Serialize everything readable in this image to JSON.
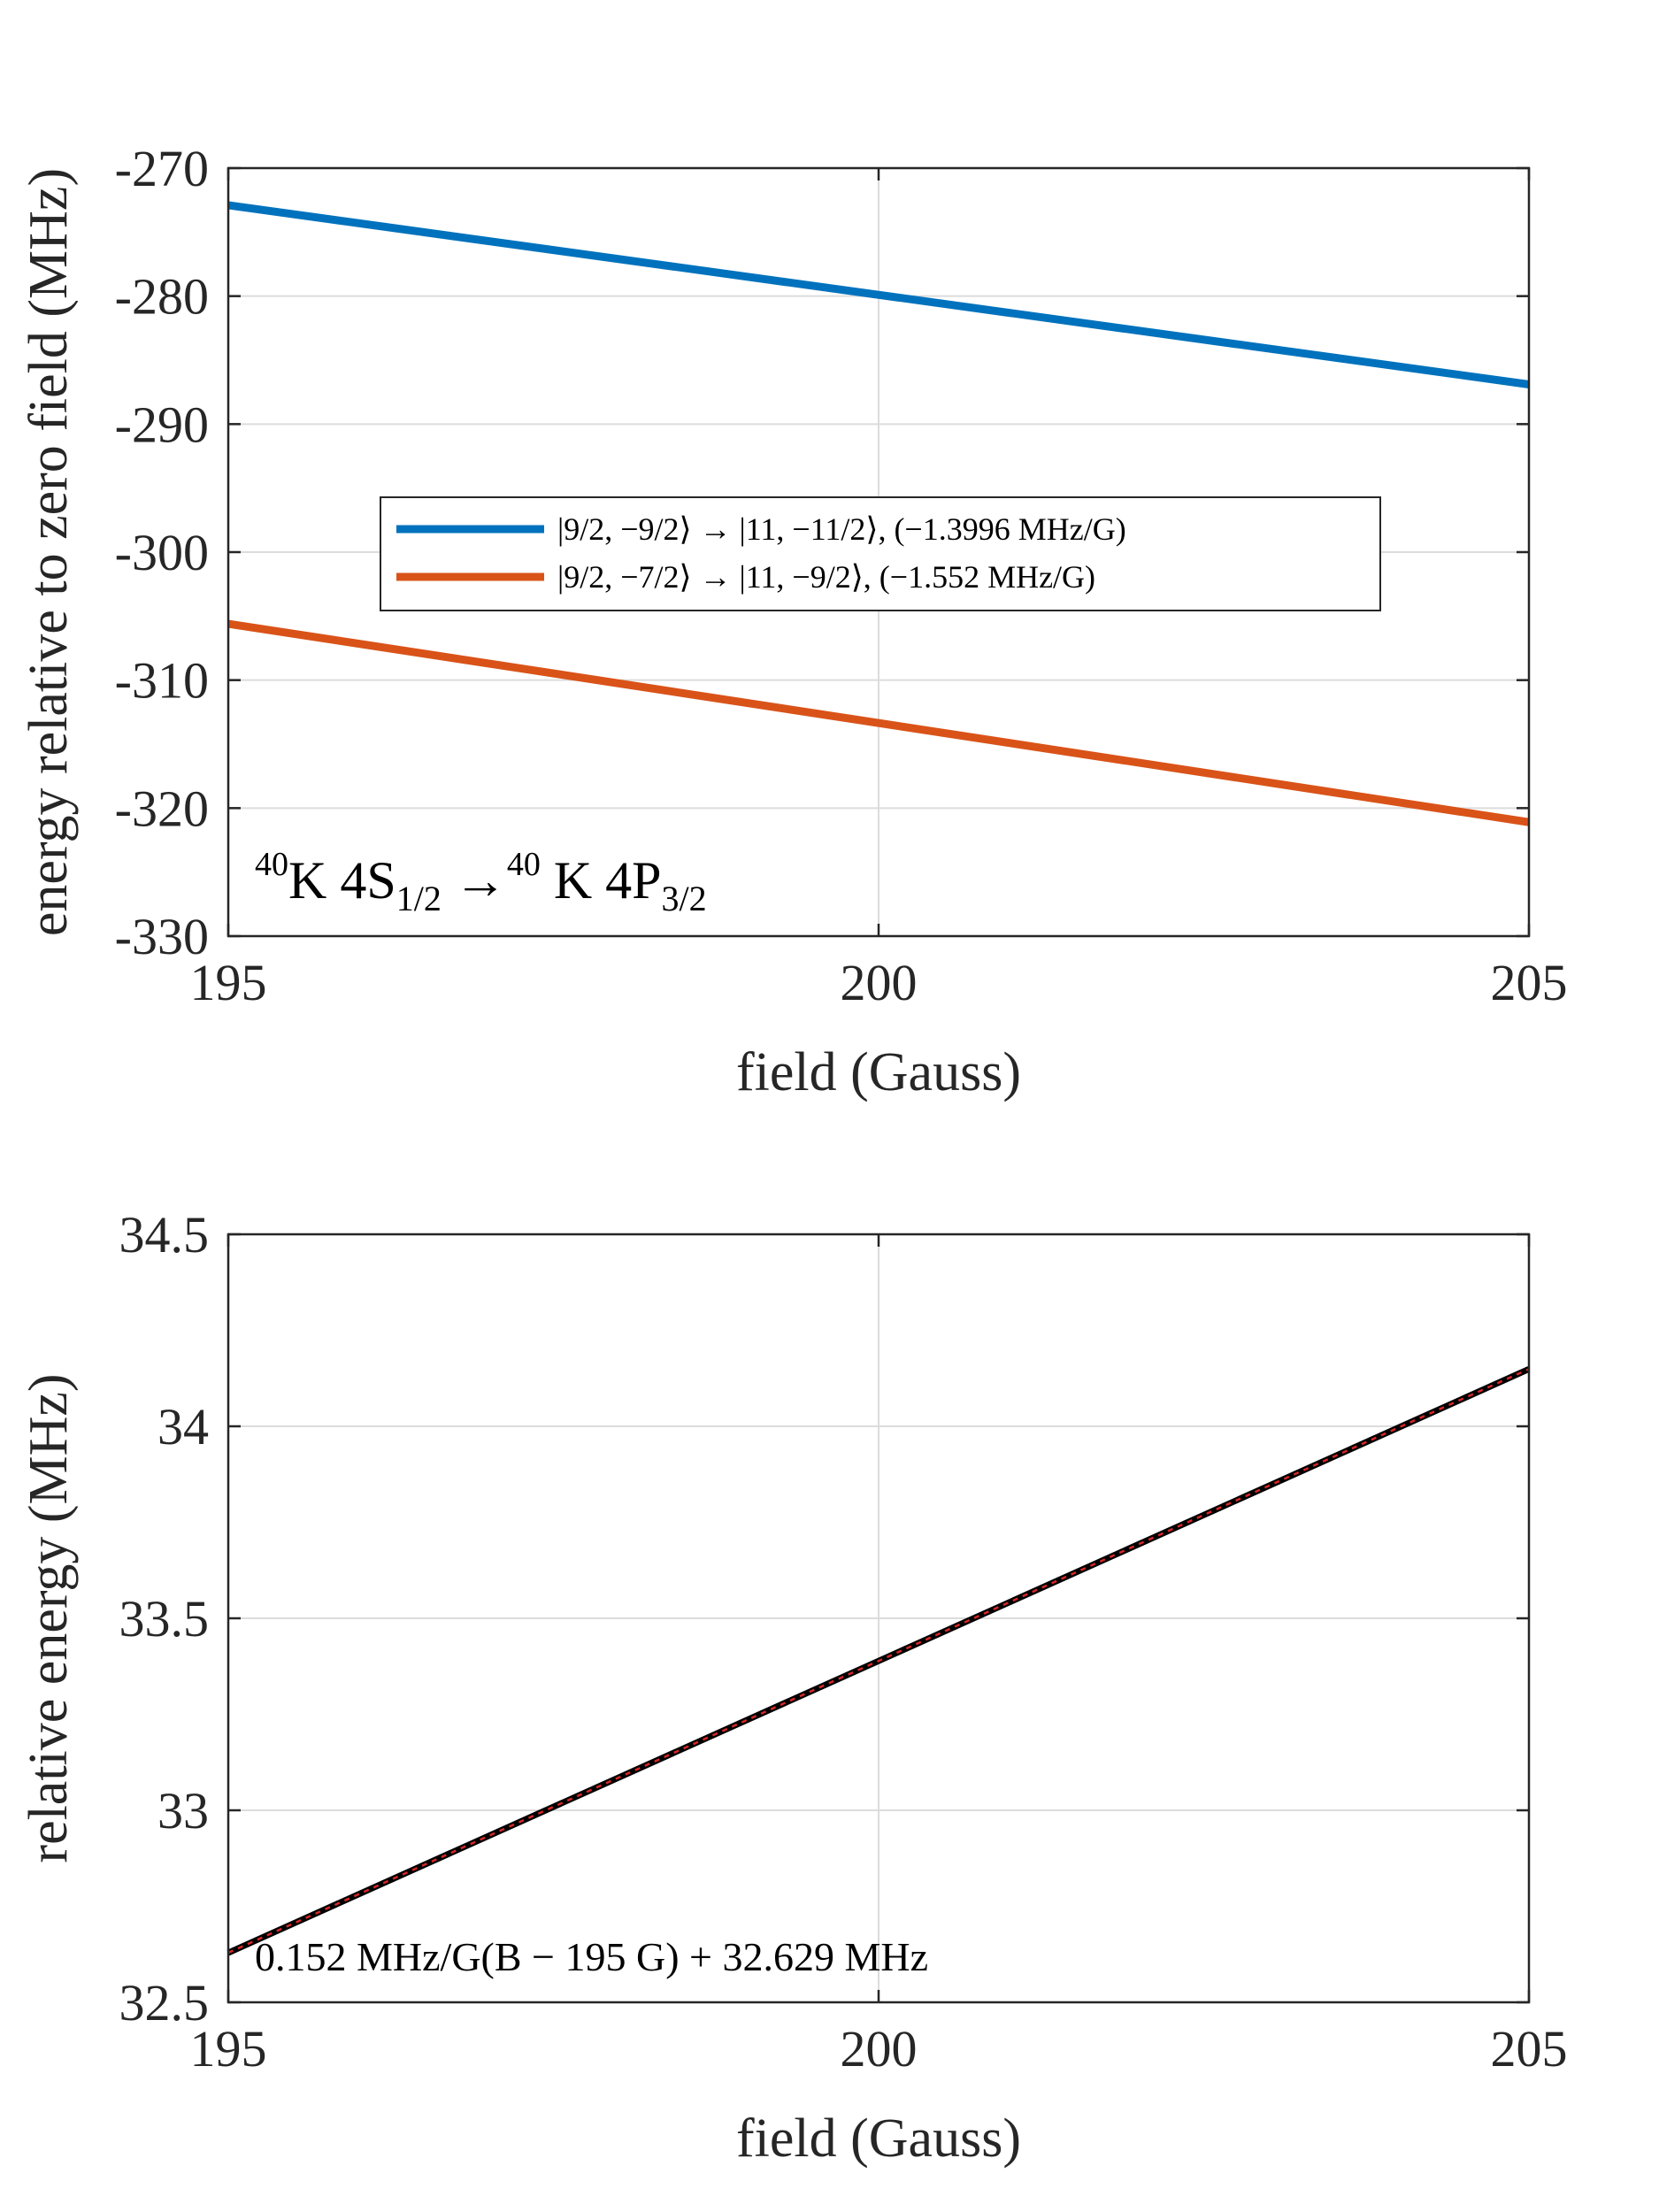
{
  "chart_data": [
    {
      "type": "line",
      "x": [
        195,
        205
      ],
      "series": [
        {
          "name": "|9/2, −9/2⟩ → |11, −11/2⟩, (−1.3996 MHz/G)",
          "values": [
            -272.9,
            -286.9
          ],
          "color": "#0072BD"
        },
        {
          "name": "|9/2, −7/2⟩ → |11, −9/2⟩, (−1.552 MHz/G)",
          "values": [
            -305.6,
            -321.1
          ],
          "color": "#D95319"
        }
      ],
      "xlabel": "field (Gauss)",
      "ylabel": "energy relative to zero field (MHz)",
      "xlim": [
        195,
        205
      ],
      "ylim": [
        -330,
        -270
      ],
      "xticks": [
        "195",
        "200",
        "205"
      ],
      "yticks": [
        "-270",
        "-280",
        "-290",
        "-300",
        "-310",
        "-320",
        "-330"
      ],
      "legend": "center",
      "grid": true,
      "annotation": {
        "main": "K 4S",
        "sup1": "40",
        "sub1": "1/2",
        "arrow": "→",
        "sup2": "40",
        "main2": " K 4P",
        "sub2": "3/2"
      }
    },
    {
      "type": "line",
      "x": [
        195,
        205
      ],
      "series": [
        {
          "values": [
            32.629,
            34.149
          ],
          "color": "#000000"
        },
        {
          "values": [
            32.629,
            34.149
          ],
          "color": "#D62728"
        }
      ],
      "xlabel": "field (Gauss)",
      "ylabel": "relative energy (MHz)",
      "xlim": [
        195,
        205
      ],
      "ylim": [
        32.5,
        34.5
      ],
      "xticks": [
        "195",
        "200",
        "205"
      ],
      "yticks": [
        "34.5",
        "34",
        "33.5",
        "33",
        "32.5"
      ],
      "grid": true,
      "annotation": "0.152 MHz/G(B − 195 G) + 32.629 MHz"
    }
  ]
}
